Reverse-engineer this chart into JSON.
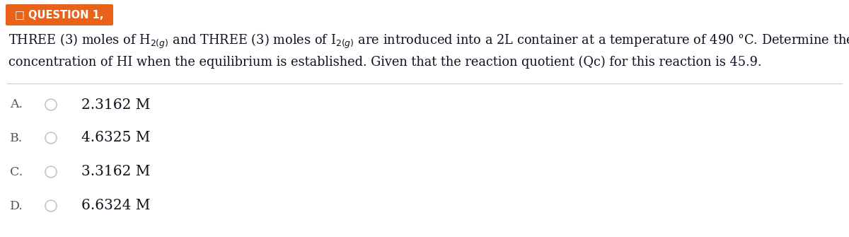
{
  "question_label": "QUESTION 1,",
  "question_label_bg": "#E8621A",
  "question_label_text_color": "#ffffff",
  "question_prefix_icon": "□",
  "body_line1": "THREE (3) moles of H$_{2(g)}$ and THREE (3) moles of I$_{2(g)}$ are introduced into a 2L container at a temperature of 490 °C. Determine the",
  "body_line2": "concentration of HI when the equilibrium is established. Given that the reaction quotient (Qc) for this reaction is 45.9.",
  "divider_color": "#cccccc",
  "options": [
    {
      "label": "A.",
      "value": "2.3162 M"
    },
    {
      "label": "B.",
      "value": "4.6325 M"
    },
    {
      "label": "C.",
      "value": "3.3162 M"
    },
    {
      "label": "D.",
      "value": "6.6324 M"
    }
  ],
  "option_label_color": "#555555",
  "option_value_color": "#111122",
  "radio_color": "#bbbbbb",
  "bg_color": "#ffffff",
  "body_text_color": "#111122",
  "body_fontsize": 12.8,
  "option_fontsize": 14.5,
  "option_label_fontsize": 12.5
}
